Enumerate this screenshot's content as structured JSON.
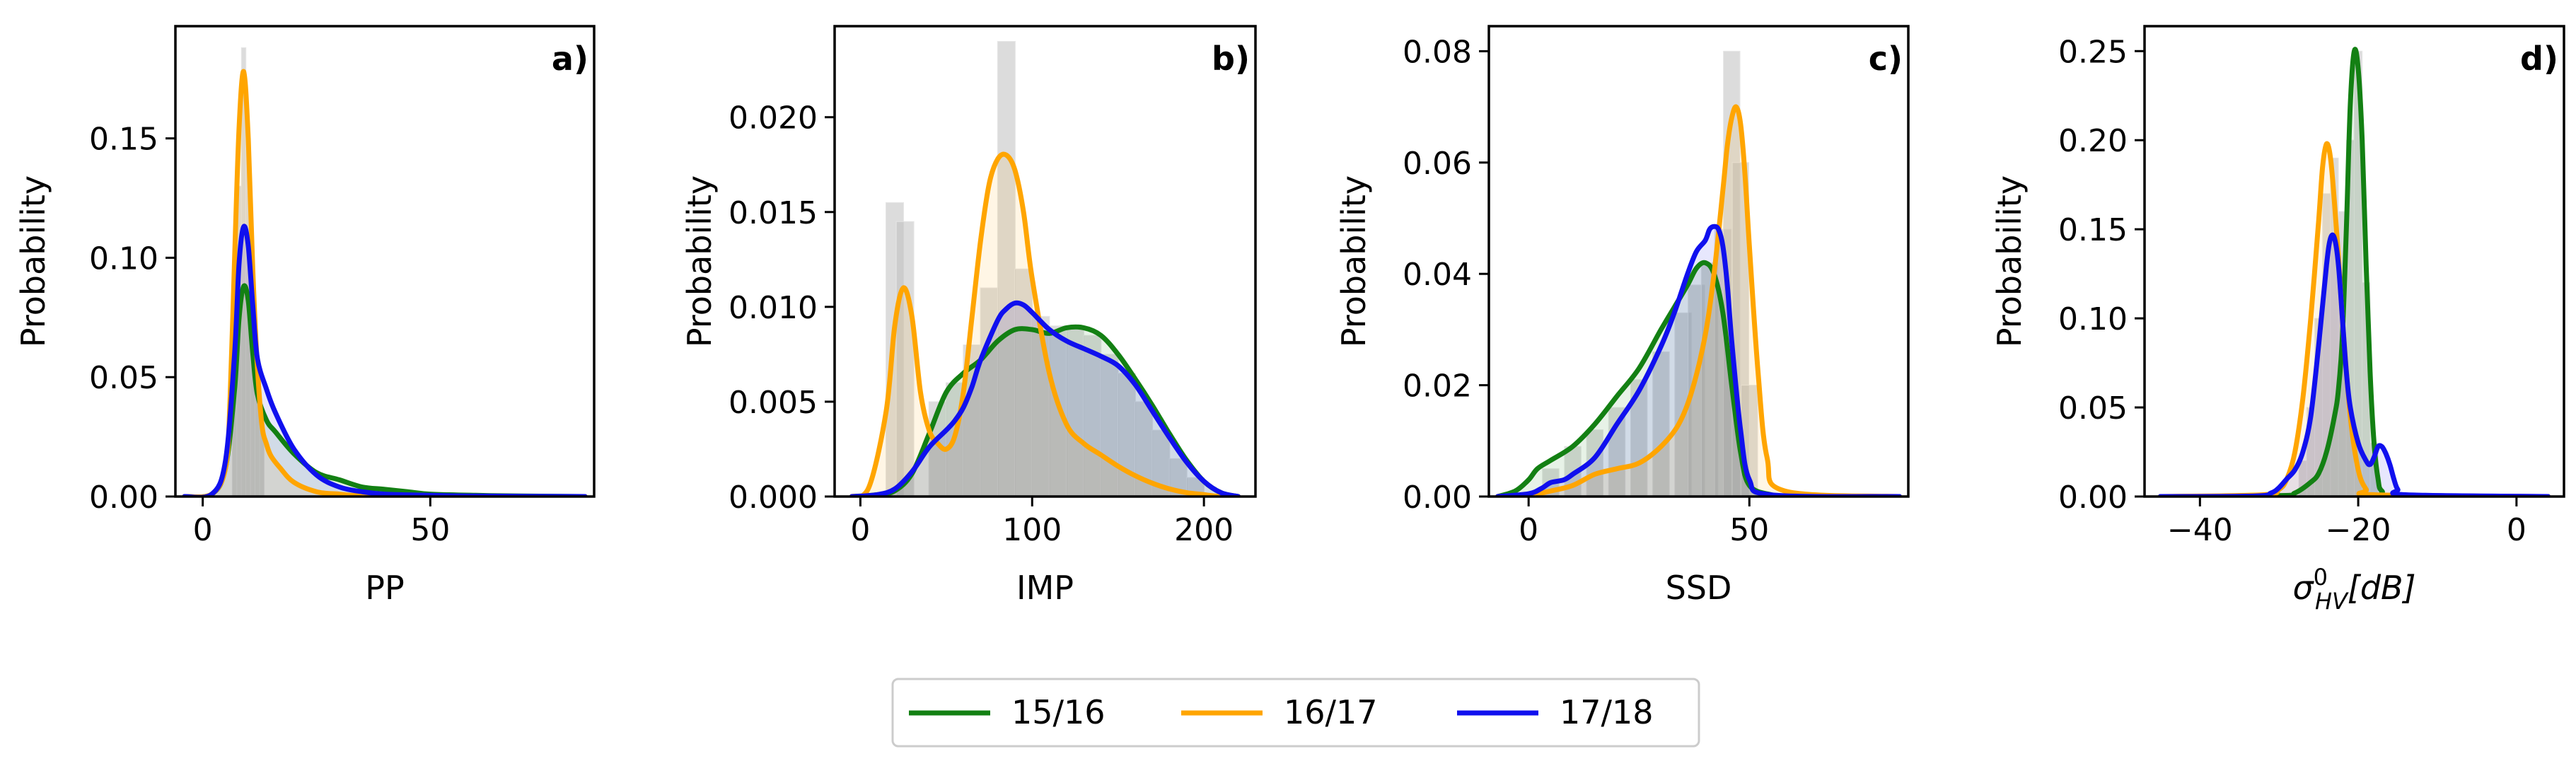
{
  "chart_data": [
    {
      "type": "line",
      "panel_label": "a)",
      "xlabel": "PP",
      "ylabel": "Probability",
      "xlim": [
        -6,
        86
      ],
      "ylim": [
        0,
        0.197
      ],
      "xticks": [
        0,
        50
      ],
      "xtick_labels": [
        "0",
        "50"
      ],
      "yticks": [
        0.0,
        0.05,
        0.1,
        0.15
      ],
      "ytick_labels": [
        "0.00",
        "0.05",
        "0.10",
        "0.15"
      ],
      "histogram": {
        "x": [
          7,
          8,
          9,
          10,
          11,
          12,
          13
        ],
        "values": [
          0.07,
          0.13,
          0.188,
          0.15,
          0.09,
          0.05,
          0.03
        ]
      },
      "series": [
        {
          "name": "15/16",
          "color": "#138013",
          "x": [
            -4,
            2,
            5,
            7,
            8,
            9,
            10,
            11,
            12,
            14,
            16,
            20,
            25,
            30,
            35,
            40,
            45,
            50,
            60,
            70,
            84
          ],
          "values": [
            0,
            0.001,
            0.012,
            0.045,
            0.075,
            0.088,
            0.082,
            0.06,
            0.043,
            0.032,
            0.027,
            0.018,
            0.01,
            0.007,
            0.004,
            0.003,
            0.002,
            0.001,
            0.0005,
            0.0002,
            0
          ]
        },
        {
          "name": "16/17",
          "color": "#FFA500",
          "x": [
            -4,
            2,
            5,
            6,
            7,
            8,
            9,
            10,
            11,
            12,
            13,
            14,
            15,
            17,
            20,
            25,
            30,
            35,
            50,
            84
          ],
          "values": [
            0,
            0.001,
            0.012,
            0.04,
            0.1,
            0.155,
            0.178,
            0.15,
            0.095,
            0.055,
            0.03,
            0.022,
            0.017,
            0.012,
            0.006,
            0.002,
            0.001,
            0.0003,
            0,
            0
          ]
        },
        {
          "name": "17/18",
          "color": "#1010EE",
          "x": [
            -4,
            2,
            5,
            7,
            8,
            9,
            10,
            11,
            12,
            14,
            16,
            20,
            25,
            30,
            35,
            40,
            50,
            60,
            84
          ],
          "values": [
            0,
            0.001,
            0.015,
            0.06,
            0.098,
            0.113,
            0.105,
            0.08,
            0.058,
            0.045,
            0.035,
            0.02,
            0.009,
            0.004,
            0.002,
            0.001,
            0.0005,
            0.0002,
            0
          ]
        }
      ]
    },
    {
      "type": "line",
      "panel_label": "b)",
      "xlabel": "IMP",
      "ylabel": "Probability",
      "xlim": [
        -15,
        230
      ],
      "ylim": [
        0,
        0.0248
      ],
      "xticks": [
        0,
        100,
        200
      ],
      "xtick_labels": [
        "0",
        "100",
        "200"
      ],
      "yticks": [
        0.0,
        0.005,
        0.01,
        0.015,
        0.02
      ],
      "ytick_labels": [
        "0.000",
        "0.005",
        "0.010",
        "0.015",
        "0.020"
      ],
      "histogram": {
        "x": [
          20,
          26,
          45,
          55,
          65,
          75,
          85,
          95,
          105,
          115,
          125,
          135,
          145,
          155,
          165,
          175,
          185,
          195
        ],
        "values": [
          0.0155,
          0.0145,
          0.005,
          0.006,
          0.008,
          0.011,
          0.024,
          0.012,
          0.0095,
          0.009,
          0.009,
          0.0085,
          0.0075,
          0.0065,
          0.005,
          0.0035,
          0.002,
          0.001
        ]
      },
      "series": [
        {
          "name": "15/16",
          "color": "#138013",
          "x": [
            -5,
            10,
            20,
            30,
            40,
            50,
            60,
            70,
            80,
            90,
            100,
            110,
            120,
            130,
            140,
            150,
            160,
            170,
            180,
            190,
            200,
            210,
            220
          ],
          "values": [
            0,
            0.0001,
            0.0003,
            0.0012,
            0.0033,
            0.0055,
            0.0065,
            0.0072,
            0.0082,
            0.0088,
            0.0088,
            0.0086,
            0.0089,
            0.0089,
            0.0085,
            0.0075,
            0.0062,
            0.0048,
            0.0033,
            0.0019,
            0.0008,
            0.0002,
            0
          ]
        },
        {
          "name": "16/17",
          "color": "#FFA500",
          "x": [
            -5,
            5,
            15,
            20,
            25,
            30,
            35,
            40,
            45,
            50,
            55,
            60,
            65,
            70,
            75,
            80,
            85,
            90,
            95,
            100,
            110,
            120,
            130,
            140,
            150,
            160,
            170,
            180,
            190,
            200,
            210,
            220
          ],
          "values": [
            0,
            0.0005,
            0.0045,
            0.009,
            0.011,
            0.0095,
            0.0055,
            0.0035,
            0.0028,
            0.0025,
            0.0032,
            0.0055,
            0.0095,
            0.0135,
            0.0165,
            0.0178,
            0.018,
            0.0172,
            0.015,
            0.0115,
            0.0065,
            0.0038,
            0.0028,
            0.0022,
            0.0016,
            0.0011,
            0.0007,
            0.0004,
            0.0002,
            0.0001,
            0,
            0
          ]
        },
        {
          "name": "17/18",
          "color": "#1010EE",
          "x": [
            -5,
            10,
            20,
            30,
            40,
            50,
            55,
            60,
            65,
            70,
            80,
            85,
            90,
            95,
            100,
            110,
            120,
            130,
            140,
            150,
            160,
            170,
            180,
            190,
            200,
            210,
            220
          ],
          "values": [
            0,
            0.0001,
            0.0004,
            0.0013,
            0.0026,
            0.0035,
            0.004,
            0.0047,
            0.0058,
            0.0072,
            0.0093,
            0.0099,
            0.0102,
            0.0101,
            0.0097,
            0.0088,
            0.0082,
            0.0078,
            0.0074,
            0.0069,
            0.0059,
            0.0045,
            0.0031,
            0.0018,
            0.0008,
            0.0002,
            0
          ]
        }
      ]
    },
    {
      "type": "line",
      "panel_label": "c)",
      "xlabel": "SSD",
      "ylabel": "Probability",
      "xlim": [
        -9,
        86
      ],
      "ylim": [
        0,
        0.0845
      ],
      "xticks": [
        0,
        50
      ],
      "xtick_labels": [
        "0",
        "50"
      ],
      "yticks": [
        0.0,
        0.02,
        0.04,
        0.06,
        0.08
      ],
      "ytick_labels": [
        "0.00",
        "0.02",
        "0.04",
        "0.06",
        "0.08"
      ],
      "histogram": {
        "x": [
          5,
          10,
          15,
          20,
          25,
          30,
          35,
          38,
          41,
          44,
          46,
          48,
          50
        ],
        "values": [
          0.005,
          0.009,
          0.012,
          0.016,
          0.021,
          0.026,
          0.033,
          0.038,
          0.042,
          0.048,
          0.08,
          0.06,
          0.02
        ]
      },
      "series": [
        {
          "name": "15/16",
          "color": "#138013",
          "x": [
            -7,
            -3,
            0,
            2,
            5,
            10,
            15,
            20,
            25,
            30,
            33,
            36,
            38,
            40,
            42,
            44,
            46,
            48,
            50,
            55,
            60,
            84
          ],
          "values": [
            0,
            0.001,
            0.003,
            0.005,
            0.0065,
            0.009,
            0.013,
            0.018,
            0.023,
            0.03,
            0.034,
            0.038,
            0.041,
            0.042,
            0.04,
            0.033,
            0.02,
            0.008,
            0.002,
            0.0003,
            0,
            0
          ]
        },
        {
          "name": "16/17",
          "color": "#FFA500",
          "x": [
            -7,
            0,
            5,
            10,
            15,
            20,
            25,
            30,
            34,
            37,
            40,
            42,
            44,
            45,
            46,
            47,
            48,
            49,
            50,
            52,
            54,
            58,
            84
          ],
          "values": [
            0,
            0.0002,
            0.001,
            0.002,
            0.004,
            0.005,
            0.006,
            0.009,
            0.013,
            0.019,
            0.029,
            0.04,
            0.055,
            0.063,
            0.068,
            0.07,
            0.067,
            0.058,
            0.045,
            0.022,
            0.007,
            0.001,
            0
          ]
        },
        {
          "name": "17/18",
          "color": "#1010EE",
          "x": [
            -7,
            0,
            3,
            5,
            8,
            10,
            15,
            20,
            25,
            30,
            33,
            36,
            38,
            40,
            41,
            42,
            43,
            44,
            45,
            46,
            48,
            50,
            55,
            84
          ],
          "values": [
            0,
            0.0005,
            0.0015,
            0.0025,
            0.003,
            0.004,
            0.007,
            0.013,
            0.019,
            0.027,
            0.033,
            0.04,
            0.044,
            0.046,
            0.048,
            0.0485,
            0.048,
            0.045,
            0.038,
            0.028,
            0.012,
            0.003,
            0.0003,
            0
          ]
        }
      ]
    },
    {
      "type": "line",
      "panel_label": "d)",
      "xlabel": "σ⁰HV[dB]",
      "ylabel": "Probability",
      "xlim": [
        -47,
        6
      ],
      "ylim": [
        0,
        0.264
      ],
      "xticks": [
        -40,
        -20,
        0
      ],
      "xtick_labels": [
        "−40",
        "−20",
        "0"
      ],
      "yticks": [
        0.0,
        0.05,
        0.1,
        0.15,
        0.2,
        0.25
      ],
      "ytick_labels": [
        "0.00",
        "0.05",
        "0.10",
        "0.15",
        "0.20",
        "0.25"
      ],
      "histogram": {
        "x": [
          -27,
          -26,
          -25,
          -24,
          -23,
          -22,
          -21,
          -20,
          -19,
          -18
        ],
        "values": [
          0.02,
          0.05,
          0.1,
          0.17,
          0.19,
          0.16,
          0.2,
          0.25,
          0.12,
          0.03
        ]
      },
      "series": [
        {
          "name": "15/16",
          "color": "#138013",
          "x": [
            -45,
            -30,
            -28,
            -26,
            -25,
            -24,
            -23,
            -22.5,
            -22,
            -21.5,
            -21,
            -20.5,
            -20,
            -19.5,
            -19,
            -18.5,
            -18,
            -17.5,
            -17,
            -15,
            4
          ],
          "values": [
            0,
            0.0005,
            0.002,
            0.008,
            0.013,
            0.025,
            0.045,
            0.06,
            0.09,
            0.15,
            0.22,
            0.25,
            0.24,
            0.2,
            0.13,
            0.07,
            0.03,
            0.01,
            0.003,
            0,
            0
          ]
        },
        {
          "name": "16/17",
          "color": "#FFA500",
          "x": [
            -45,
            -32,
            -30,
            -29,
            -28,
            -27,
            -26,
            -25,
            -24.5,
            -24,
            -23.5,
            -23,
            -22.5,
            -22,
            -21,
            -20,
            -19,
            -18,
            4
          ],
          "values": [
            0,
            0.001,
            0.004,
            0.01,
            0.025,
            0.055,
            0.1,
            0.155,
            0.185,
            0.198,
            0.19,
            0.165,
            0.135,
            0.1,
            0.045,
            0.015,
            0.004,
            0.001,
            0
          ]
        },
        {
          "name": "17/18",
          "color": "#1010EE",
          "x": [
            -45,
            -33,
            -31,
            -30,
            -29,
            -28,
            -27,
            -26,
            -25,
            -24,
            -23.5,
            -23,
            -22.5,
            -22,
            -21.5,
            -21,
            -20,
            -19,
            -18.5,
            -18,
            -17.5,
            -17,
            -16.5,
            -16,
            -15.5,
            -15,
            -14,
            4
          ],
          "values": [
            0,
            0.0003,
            0.002,
            0.005,
            0.01,
            0.015,
            0.025,
            0.045,
            0.085,
            0.13,
            0.145,
            0.145,
            0.13,
            0.1,
            0.07,
            0.05,
            0.03,
            0.02,
            0.018,
            0.022,
            0.028,
            0.028,
            0.024,
            0.018,
            0.01,
            0.004,
            0.001,
            0
          ]
        }
      ]
    }
  ],
  "legend": {
    "entries": [
      {
        "label": "15/16",
        "color": "#138013"
      },
      {
        "label": "16/17",
        "color": "#FFA500"
      },
      {
        "label": "17/18",
        "color": "#1010EE"
      }
    ]
  },
  "colors": {
    "histogram": "#BFBFBF",
    "histogram_highlight": "#FFE9C4",
    "axis": "#000000"
  }
}
